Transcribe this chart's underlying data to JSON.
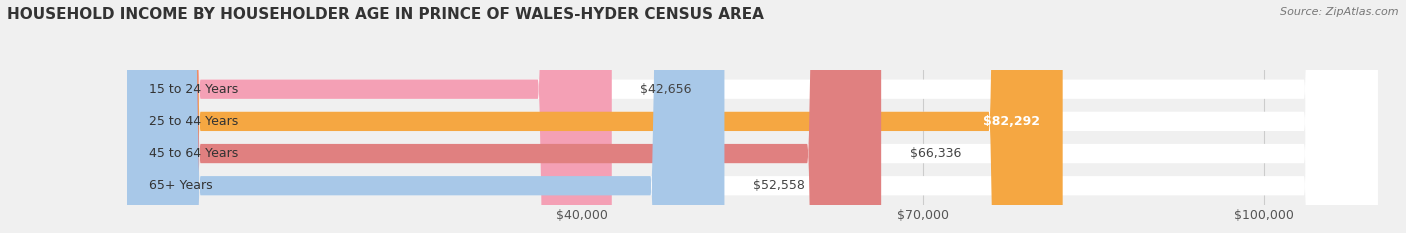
{
  "title": "HOUSEHOLD INCOME BY HOUSEHOLDER AGE IN PRINCE OF WALES-HYDER CENSUS AREA",
  "source": "Source: ZipAtlas.com",
  "categories": [
    "15 to 24 Years",
    "25 to 44 Years",
    "45 to 64 Years",
    "65+ Years"
  ],
  "values": [
    42656,
    82292,
    66336,
    52558
  ],
  "bar_colors": [
    "#f4a0b5",
    "#f5a742",
    "#e08080",
    "#a8c8e8"
  ],
  "background_color": "#f0f0f0",
  "value_labels": [
    "$42,656",
    "$82,292",
    "$66,336",
    "$52,558"
  ],
  "xmin": 0,
  "xmax": 110000,
  "xticks": [
    40000,
    70000,
    100000
  ],
  "xtick_labels": [
    "$40,000",
    "$70,000",
    "$100,000"
  ],
  "title_fontsize": 11,
  "label_fontsize": 9,
  "value_fontsize": 9,
  "source_fontsize": 8,
  "value_threshold": 70000
}
